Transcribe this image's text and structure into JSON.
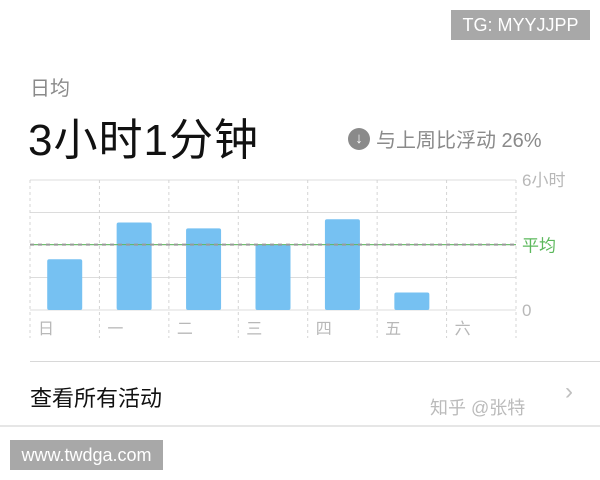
{
  "header": {
    "avg_label": "日均",
    "total_time": "3小时1分钟",
    "compare_icon": "arrow-down-circle-icon",
    "compare_text": "与上周比浮动 26%"
  },
  "chart_data": {
    "type": "bar",
    "categories": [
      "日",
      "一",
      "二",
      "三",
      "四",
      "五",
      "六"
    ],
    "values": [
      2.34,
      4.04,
      3.77,
      3.02,
      4.19,
      0.81,
      0
    ],
    "ylim": [
      0,
      6
    ],
    "yticks": [
      {
        "value": 6,
        "label": "6小时"
      },
      {
        "value": 0,
        "label": "0"
      }
    ],
    "gridlines": [
      0,
      1.5,
      3,
      4.5,
      6
    ],
    "grid": true,
    "average": {
      "value": 3.02,
      "label": "平均"
    },
    "colors": {
      "bar": "#76c1f2",
      "average": "#5cb85c",
      "grid": "#dcdcdc",
      "tick": "#b8b8b8"
    }
  },
  "footer": {
    "view_all_label": "查看所有活动",
    "chevron_icon": "chevron-right-icon"
  },
  "watermarks": {
    "tg": "TG: MYYJJPP",
    "site": "www.twdga.com",
    "zhihu": "知乎 @张特"
  }
}
